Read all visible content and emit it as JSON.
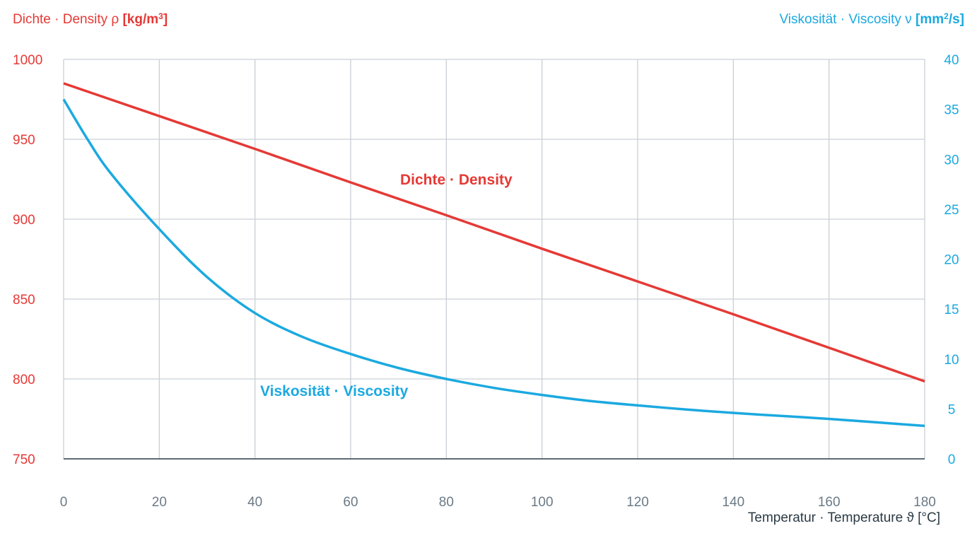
{
  "chart_data": {
    "type": "line",
    "left_axis_title": {
      "prefix": "Dichte · Density ",
      "symbol": "ρ",
      "unit_open": " [kg/m",
      "unit_sup": "3",
      "unit_close": "]"
    },
    "right_axis_title": {
      "prefix": "Viskosität · Viscosity ",
      "symbol": "ν",
      "unit_open": " [mm",
      "unit_sup": "2",
      "unit_close": "/s]"
    },
    "x_axis_title": {
      "prefix": "Temperatur · Temperature ",
      "symbol": "ϑ",
      "unit": " [°C]"
    },
    "xlim": [
      0,
      180
    ],
    "ylim_left": [
      750,
      1000
    ],
    "ylim_right": [
      0,
      40
    ],
    "x_ticks": [
      "0",
      "20",
      "40",
      "60",
      "80",
      "100",
      "120",
      "140",
      "160",
      "180"
    ],
    "y_left_ticks": [
      "750",
      "800",
      "850",
      "900",
      "950",
      "1000"
    ],
    "y_right_ticks": [
      "0",
      "5",
      "10",
      "15",
      "20",
      "25",
      "30",
      "35",
      "40"
    ],
    "grid": true,
    "colors": {
      "density": "#e53935",
      "viscosity": "#1ba9e0",
      "grid": "#c9d0d6",
      "axis": "#2b3a44",
      "tick_text": "#6b7a86"
    },
    "series": [
      {
        "name": "Dichte · Density",
        "axis": "left",
        "x": [
          0,
          20,
          40,
          60,
          80,
          100,
          120,
          140,
          160,
          180
        ],
        "values": [
          985,
          964.5,
          944,
          923,
          902.5,
          881.5,
          861,
          840.5,
          819.5,
          798.5
        ]
      },
      {
        "name": "Viskosität · Viscosity",
        "axis": "right",
        "x": [
          0,
          5,
          10,
          20,
          30,
          40,
          50,
          60,
          70,
          80,
          90,
          100,
          110,
          120,
          130,
          140,
          150,
          160,
          170,
          180
        ],
        "values": [
          36,
          32,
          28.5,
          23,
          18.2,
          14.6,
          12.2,
          10.5,
          9.1,
          8.0,
          7.1,
          6.4,
          5.8,
          5.35,
          4.95,
          4.6,
          4.3,
          4.0,
          3.65,
          3.3
        ]
      }
    ]
  }
}
